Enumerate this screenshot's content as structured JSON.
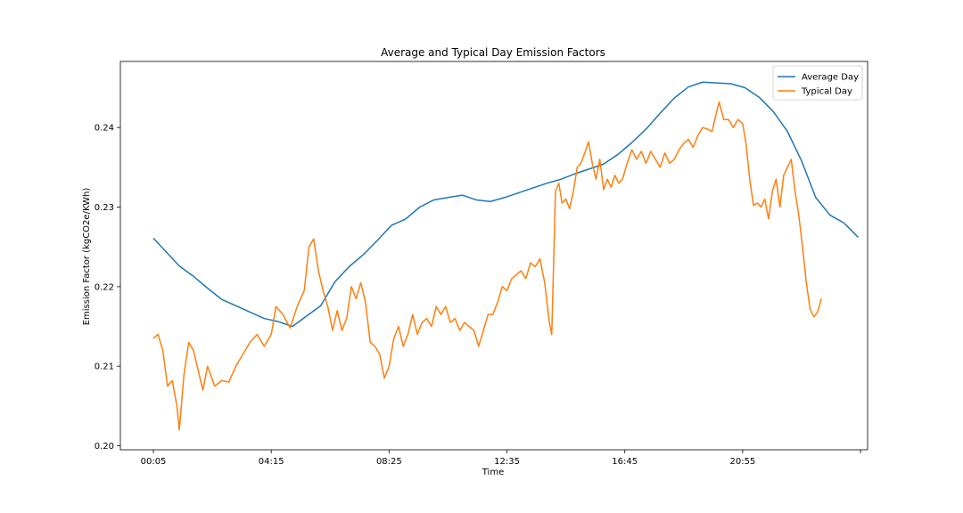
{
  "chart_data": {
    "type": "line",
    "title": "Average and Typical Day Emission Factors",
    "xlabel": "Time",
    "ylabel": "Emission Factor (kgCO2e/KWh)",
    "x_ticks": [
      "00:05",
      "04:15",
      "08:25",
      "12:35",
      "16:45",
      "20:55"
    ],
    "x_tick_minutes": [
      5,
      255,
      505,
      755,
      1005,
      1255
    ],
    "y_ticks": [
      "0.20",
      "0.21",
      "0.22",
      "0.23",
      "0.24"
    ],
    "ylim": [
      0.1995,
      0.2483
    ],
    "xlim_minutes": [
      -65,
      1520
    ],
    "legend_position": "top-right",
    "grid": false,
    "series": [
      {
        "name": "Average Day",
        "color": "#1f77b4",
        "points": [
          [
            5,
            0.2261
          ],
          [
            30,
            0.2245
          ],
          [
            60,
            0.2226
          ],
          [
            90,
            0.2213
          ],
          [
            120,
            0.2198
          ],
          [
            150,
            0.2184
          ],
          [
            180,
            0.2176
          ],
          [
            210,
            0.2168
          ],
          [
            240,
            0.216
          ],
          [
            270,
            0.2156
          ],
          [
            300,
            0.215
          ],
          [
            330,
            0.2163
          ],
          [
            360,
            0.2176
          ],
          [
            390,
            0.2206
          ],
          [
            420,
            0.2225
          ],
          [
            450,
            0.224
          ],
          [
            480,
            0.2258
          ],
          [
            510,
            0.2277
          ],
          [
            540,
            0.2285
          ],
          [
            570,
            0.23
          ],
          [
            600,
            0.2309
          ],
          [
            630,
            0.2312
          ],
          [
            660,
            0.2315
          ],
          [
            690,
            0.2309
          ],
          [
            720,
            0.2307
          ],
          [
            750,
            0.2312
          ],
          [
            780,
            0.2318
          ],
          [
            810,
            0.2324
          ],
          [
            840,
            0.233
          ],
          [
            870,
            0.2335
          ],
          [
            900,
            0.2342
          ],
          [
            930,
            0.2348
          ],
          [
            960,
            0.2354
          ],
          [
            990,
            0.2366
          ],
          [
            1020,
            0.2381
          ],
          [
            1050,
            0.2398
          ],
          [
            1080,
            0.2418
          ],
          [
            1110,
            0.2437
          ],
          [
            1140,
            0.2451
          ],
          [
            1170,
            0.2457
          ],
          [
            1200,
            0.2456
          ],
          [
            1230,
            0.2455
          ],
          [
            1260,
            0.245
          ],
          [
            1290,
            0.2438
          ],
          [
            1320,
            0.242
          ],
          [
            1350,
            0.2395
          ],
          [
            1380,
            0.2358
          ],
          [
            1410,
            0.2312
          ],
          [
            1440,
            0.229
          ],
          [
            1470,
            0.228
          ],
          [
            1500,
            0.2262
          ]
        ]
      },
      {
        "name": "Typical Day",
        "color": "#ff7f0e",
        "points": [
          [
            5,
            0.2135
          ],
          [
            15,
            0.214
          ],
          [
            25,
            0.212
          ],
          [
            35,
            0.2075
          ],
          [
            45,
            0.2082
          ],
          [
            55,
            0.205
          ],
          [
            60,
            0.202
          ],
          [
            70,
            0.209
          ],
          [
            80,
            0.213
          ],
          [
            90,
            0.212
          ],
          [
            100,
            0.2095
          ],
          [
            110,
            0.207
          ],
          [
            120,
            0.21
          ],
          [
            135,
            0.2075
          ],
          [
            150,
            0.2082
          ],
          [
            165,
            0.208
          ],
          [
            180,
            0.21
          ],
          [
            195,
            0.2115
          ],
          [
            210,
            0.213
          ],
          [
            225,
            0.214
          ],
          [
            240,
            0.2125
          ],
          [
            255,
            0.214
          ],
          [
            265,
            0.2175
          ],
          [
            280,
            0.2165
          ],
          [
            295,
            0.2148
          ],
          [
            310,
            0.2175
          ],
          [
            325,
            0.2195
          ],
          [
            335,
            0.225
          ],
          [
            345,
            0.226
          ],
          [
            355,
            0.222
          ],
          [
            365,
            0.2195
          ],
          [
            375,
            0.2175
          ],
          [
            385,
            0.2145
          ],
          [
            395,
            0.217
          ],
          [
            405,
            0.2145
          ],
          [
            415,
            0.216
          ],
          [
            425,
            0.22
          ],
          [
            435,
            0.2185
          ],
          [
            445,
            0.2205
          ],
          [
            455,
            0.218
          ],
          [
            465,
            0.213
          ],
          [
            475,
            0.2125
          ],
          [
            485,
            0.2115
          ],
          [
            495,
            0.2085
          ],
          [
            505,
            0.21
          ],
          [
            515,
            0.2135
          ],
          [
            525,
            0.215
          ],
          [
            535,
            0.2125
          ],
          [
            545,
            0.214
          ],
          [
            555,
            0.2165
          ],
          [
            565,
            0.214
          ],
          [
            575,
            0.2155
          ],
          [
            585,
            0.216
          ],
          [
            595,
            0.215
          ],
          [
            605,
            0.2175
          ],
          [
            615,
            0.2165
          ],
          [
            625,
            0.2175
          ],
          [
            635,
            0.2155
          ],
          [
            645,
            0.216
          ],
          [
            655,
            0.2145
          ],
          [
            665,
            0.2155
          ],
          [
            675,
            0.215
          ],
          [
            685,
            0.2145
          ],
          [
            695,
            0.2125
          ],
          [
            705,
            0.2145
          ],
          [
            715,
            0.2165
          ],
          [
            725,
            0.2165
          ],
          [
            735,
            0.218
          ],
          [
            745,
            0.22
          ],
          [
            755,
            0.2195
          ],
          [
            765,
            0.221
          ],
          [
            775,
            0.2215
          ],
          [
            785,
            0.222
          ],
          [
            795,
            0.221
          ],
          [
            805,
            0.223
          ],
          [
            815,
            0.2225
          ],
          [
            825,
            0.2235
          ],
          [
            835,
            0.2205
          ],
          [
            845,
            0.2155
          ],
          [
            850,
            0.214
          ],
          [
            858,
            0.232
          ],
          [
            865,
            0.233
          ],
          [
            872,
            0.2305
          ],
          [
            880,
            0.231
          ],
          [
            888,
            0.2298
          ],
          [
            896,
            0.232
          ],
          [
            904,
            0.235
          ],
          [
            912,
            0.2355
          ],
          [
            920,
            0.2368
          ],
          [
            928,
            0.2382
          ],
          [
            936,
            0.2355
          ],
          [
            944,
            0.2335
          ],
          [
            952,
            0.236
          ],
          [
            960,
            0.2322
          ],
          [
            968,
            0.2335
          ],
          [
            976,
            0.2325
          ],
          [
            984,
            0.234
          ],
          [
            992,
            0.233
          ],
          [
            1000,
            0.2335
          ],
          [
            1010,
            0.2355
          ],
          [
            1020,
            0.2372
          ],
          [
            1030,
            0.236
          ],
          [
            1040,
            0.237
          ],
          [
            1050,
            0.2355
          ],
          [
            1060,
            0.237
          ],
          [
            1070,
            0.236
          ],
          [
            1080,
            0.235
          ],
          [
            1090,
            0.2368
          ],
          [
            1100,
            0.2355
          ],
          [
            1110,
            0.236
          ],
          [
            1120,
            0.2372
          ],
          [
            1130,
            0.238
          ],
          [
            1140,
            0.2385
          ],
          [
            1150,
            0.2375
          ],
          [
            1160,
            0.239
          ],
          [
            1170,
            0.24
          ],
          [
            1180,
            0.2398
          ],
          [
            1190,
            0.2395
          ],
          [
            1200,
            0.242
          ],
          [
            1205,
            0.2432
          ],
          [
            1215,
            0.241
          ],
          [
            1225,
            0.241
          ],
          [
            1235,
            0.24
          ],
          [
            1245,
            0.241
          ],
          [
            1255,
            0.2405
          ],
          [
            1262,
            0.238
          ],
          [
            1270,
            0.2335
          ],
          [
            1278,
            0.2302
          ],
          [
            1286,
            0.2305
          ],
          [
            1294,
            0.23
          ],
          [
            1302,
            0.231
          ],
          [
            1310,
            0.2285
          ],
          [
            1318,
            0.232
          ],
          [
            1326,
            0.2335
          ],
          [
            1334,
            0.23
          ],
          [
            1342,
            0.234
          ],
          [
            1350,
            0.235
          ],
          [
            1358,
            0.236
          ],
          [
            1366,
            0.232
          ],
          [
            1374,
            0.229
          ],
          [
            1382,
            0.225
          ],
          [
            1390,
            0.2205
          ],
          [
            1398,
            0.2172
          ],
          [
            1406,
            0.2162
          ],
          [
            1414,
            0.2168
          ],
          [
            1422,
            0.2185
          ]
        ]
      }
    ]
  }
}
